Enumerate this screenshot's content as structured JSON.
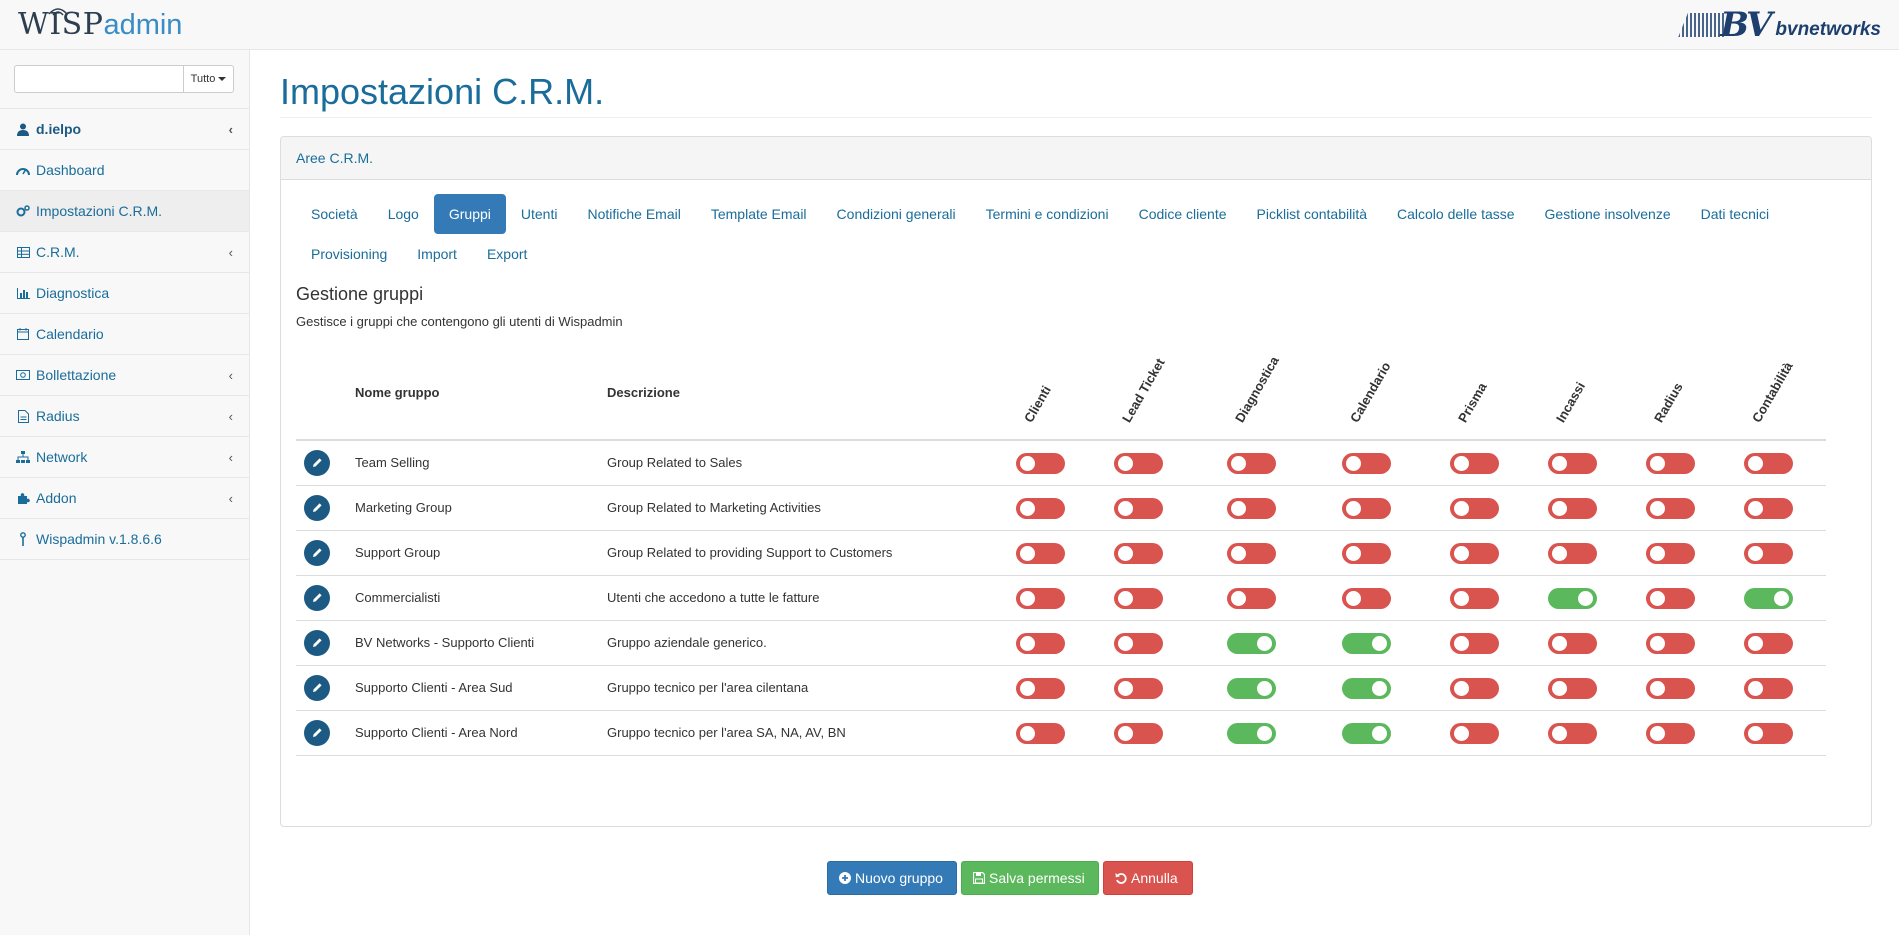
{
  "header": {
    "logo_wisp": "WISP",
    "logo_admin": "admin",
    "brand_bv": "BV",
    "brand_name": "bvnetworks"
  },
  "sidebar": {
    "search": {
      "value": "",
      "placeholder": "",
      "filter_label": "Tutto"
    },
    "items": [
      {
        "label": "d.ielpo",
        "icon": "user-icon",
        "has_submenu": true
      },
      {
        "label": "Dashboard",
        "icon": "dashboard-icon",
        "has_submenu": false
      },
      {
        "label": "Impostazioni C.R.M.",
        "icon": "gears-icon",
        "has_submenu": false,
        "active": true
      },
      {
        "label": "C.R.M.",
        "icon": "table-icon",
        "has_submenu": true
      },
      {
        "label": "Diagnostica",
        "icon": "bar-chart-icon",
        "has_submenu": false
      },
      {
        "label": "Calendario",
        "icon": "calendar-icon",
        "has_submenu": false
      },
      {
        "label": "Bollettazione",
        "icon": "money-icon",
        "has_submenu": true
      },
      {
        "label": "Radius",
        "icon": "file-icon",
        "has_submenu": true
      },
      {
        "label": "Network",
        "icon": "sitemap-icon",
        "has_submenu": true
      },
      {
        "label": "Addon",
        "icon": "puzzle-icon",
        "has_submenu": true
      },
      {
        "label": "Wispadmin v.1.8.6.6",
        "icon": "antenna-icon",
        "has_submenu": false
      }
    ]
  },
  "main": {
    "title": "Impostazioni C.R.M.",
    "panel_heading": "Aree C.R.M.",
    "tabs": [
      "Società",
      "Logo",
      "Gruppi",
      "Utenti",
      "Notifiche Email",
      "Template Email",
      "Condizioni generali",
      "Termini e condizioni",
      "Codice cliente",
      "Picklist contabilità",
      "Calcolo delle tasse",
      "Gestione insolvenze",
      "Dati tecnici",
      "Provisioning",
      "Import",
      "Export"
    ],
    "active_tab": "Gruppi",
    "section_title": "Gestione gruppi",
    "section_subtitle": "Gestisce i gruppi che contengono gli utenti di Wispadmin",
    "table": {
      "col_name": "Nome gruppo",
      "col_description": "Descrizione",
      "permission_columns": [
        "Clienti",
        "Lead Ticket",
        "Diagnostica",
        "Calendario",
        "Prisma",
        "Incassi",
        "Radius",
        "Contabilità"
      ],
      "rows": [
        {
          "name": "Team Selling",
          "description": "Group Related to Sales",
          "permissions": [
            false,
            false,
            false,
            false,
            false,
            false,
            false,
            false
          ]
        },
        {
          "name": "Marketing Group",
          "description": "Group Related to Marketing Activities",
          "permissions": [
            false,
            false,
            false,
            false,
            false,
            false,
            false,
            false
          ]
        },
        {
          "name": "Support Group",
          "description": "Group Related to providing Support to Customers",
          "permissions": [
            false,
            false,
            false,
            false,
            false,
            false,
            false,
            false
          ]
        },
        {
          "name": "Commercialisti",
          "description": "Utenti che accedono a tutte le fatture",
          "permissions": [
            false,
            false,
            false,
            false,
            false,
            true,
            false,
            true
          ]
        },
        {
          "name": "BV Networks - Supporto Clienti",
          "description": "Gruppo aziendale generico.",
          "permissions": [
            false,
            false,
            true,
            true,
            false,
            false,
            false,
            false
          ]
        },
        {
          "name": "Supporto Clienti - Area Sud",
          "description": "Gruppo tecnico per l'area cilentana",
          "permissions": [
            false,
            false,
            true,
            true,
            false,
            false,
            false,
            false
          ]
        },
        {
          "name": "Supporto Clienti - Area Nord",
          "description": "Gruppo tecnico per l'area SA, NA, AV, BN",
          "permissions": [
            false,
            false,
            true,
            true,
            false,
            false,
            false,
            false
          ]
        }
      ]
    },
    "buttons": {
      "new_group": "Nuovo gruppo",
      "save": "Salva permessi",
      "cancel": "Annulla"
    }
  },
  "colors": {
    "primary": "#337ab7",
    "link": "#1a6d9a",
    "toggle_off": "#d9534f",
    "toggle_on": "#5cb85c",
    "edit_button": "#1c5a84"
  }
}
